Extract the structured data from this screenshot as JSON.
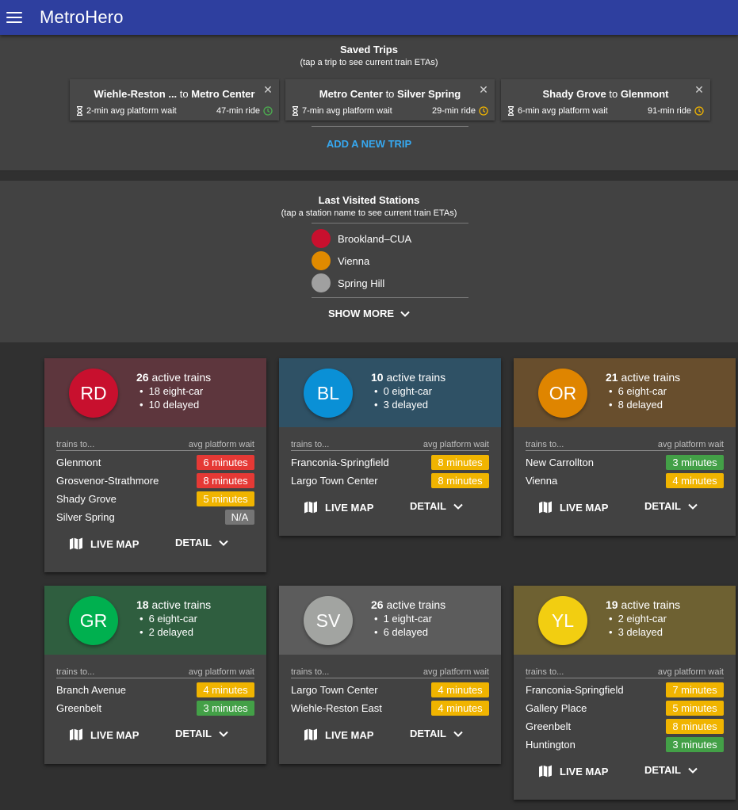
{
  "header": {
    "title": "MetroHero"
  },
  "saved_trips": {
    "title": "Saved Trips",
    "subtitle": "(tap a trip to see current train ETAs)",
    "add_label": "ADD A NEW TRIP",
    "connector": "to",
    "close_glyph": "✕",
    "trips": [
      {
        "from": "Wiehle-Reston ...",
        "to": "Metro Center",
        "wait": "2-min avg platform wait",
        "ride": "47-min ride",
        "status_color": "#4caf50"
      },
      {
        "from": "Metro Center",
        "to": "Silver Spring",
        "wait": "7-min avg platform wait",
        "ride": "29-min ride",
        "status_color": "#f0b400"
      },
      {
        "from": "Shady Grove",
        "to": "Glenmont",
        "wait": "6-min avg platform wait",
        "ride": "91-min ride",
        "status_color": "#f0b400"
      }
    ]
  },
  "last_visited": {
    "title": "Last Visited Stations",
    "subtitle": "(tap a station name to see current train ETAs)",
    "show_more": "SHOW MORE",
    "stations": [
      {
        "name": "Brookland–CUA",
        "color": "#c8102e"
      },
      {
        "name": "Vienna",
        "color": "#e08a00"
      },
      {
        "name": "Spring Hill",
        "color": "#a0a0a0"
      }
    ]
  },
  "labels": {
    "trains_to": "trains to...",
    "avg_wait": "avg platform wait",
    "live_map": "LIVE MAP",
    "detail": "DETAIL",
    "active_suffix": "active trains"
  },
  "lines": [
    {
      "code": "RD",
      "header_bg": "#5d363d",
      "badge_color": "#c8102e",
      "active": "26",
      "eight_car": "18 eight-car",
      "delayed": "10 delayed",
      "rows": [
        {
          "dest": "Glenmont",
          "wait": "6 minutes",
          "color": "#e53935"
        },
        {
          "dest": "Grosvenor-Strathmore",
          "wait": "8 minutes",
          "color": "#e53935"
        },
        {
          "dest": "Shady Grove",
          "wait": "5 minutes",
          "color": "#f0b400"
        },
        {
          "dest": "Silver Spring",
          "wait": "N/A",
          "color": "#757575"
        }
      ]
    },
    {
      "code": "BL",
      "header_bg": "#2f5165",
      "badge_color": "#0a90d6",
      "active": "10",
      "eight_car": "0 eight-car",
      "delayed": "3 delayed",
      "rows": [
        {
          "dest": "Franconia-Springfield",
          "wait": "8 minutes",
          "color": "#f0b400"
        },
        {
          "dest": "Largo Town Center",
          "wait": "8 minutes",
          "color": "#f0b400"
        }
      ]
    },
    {
      "code": "OR",
      "header_bg": "#684e2d",
      "badge_color": "#df8500",
      "active": "21",
      "eight_car": "6 eight-car",
      "delayed": "8 delayed",
      "rows": [
        {
          "dest": "New Carrollton",
          "wait": "3 minutes",
          "color": "#43a047"
        },
        {
          "dest": "Vienna",
          "wait": "4 minutes",
          "color": "#f0b400"
        }
      ]
    },
    {
      "code": "GR",
      "header_bg": "#2f5e3f",
      "badge_color": "#00b04f",
      "active": "18",
      "eight_car": "6 eight-car",
      "delayed": "2 delayed",
      "rows": [
        {
          "dest": "Branch Avenue",
          "wait": "4 minutes",
          "color": "#f0b400"
        },
        {
          "dest": "Greenbelt",
          "wait": "3 minutes",
          "color": "#43a047"
        }
      ]
    },
    {
      "code": "SV",
      "header_bg": "#5c5c5c",
      "badge_color": "#a2a4a1",
      "active": "26",
      "eight_car": "1 eight-car",
      "delayed": "6 delayed",
      "rows": [
        {
          "dest": "Largo Town Center",
          "wait": "4 minutes",
          "color": "#f0b400"
        },
        {
          "dest": "Wiehle-Reston East",
          "wait": "4 minutes",
          "color": "#f0b400"
        }
      ]
    },
    {
      "code": "YL",
      "header_bg": "#6e6132",
      "badge_color": "#f2ce11",
      "active": "19",
      "eight_car": "2 eight-car",
      "delayed": "3 delayed",
      "rows": [
        {
          "dest": "Franconia-Springfield",
          "wait": "7 minutes",
          "color": "#f0b400"
        },
        {
          "dest": "Gallery Place",
          "wait": "5 minutes",
          "color": "#f0b400"
        },
        {
          "dest": "Greenbelt",
          "wait": "8 minutes",
          "color": "#f0b400"
        },
        {
          "dest": "Huntington",
          "wait": "3 minutes",
          "color": "#43a047"
        }
      ]
    }
  ]
}
